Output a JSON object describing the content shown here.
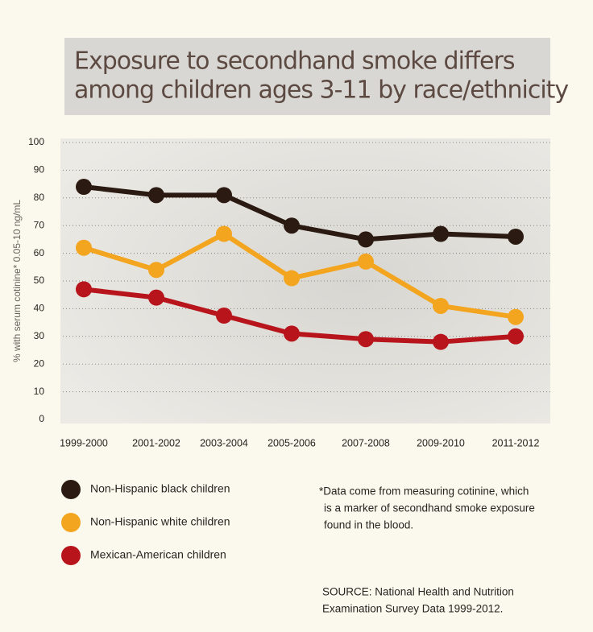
{
  "chart_data": {
    "type": "line",
    "title": [
      "Exposure to secondhand smoke differs",
      "among children ages 3-11 by race/ethnicity"
    ],
    "y_label": "% with serum cotinine* 0.05-10 ng/mL",
    "categories": [
      "1999-2000",
      "2001-2002",
      "2003-2004",
      "2005-2006",
      "2007-2008",
      "2009-2010",
      "2011-2012"
    ],
    "series": [
      {
        "name": "Non-Hispanic black children",
        "color": "#2b1a12",
        "values": [
          84,
          81,
          81,
          70,
          65,
          67,
          66
        ]
      },
      {
        "name": "Non-Hispanic white children",
        "color": "#f3a51f",
        "values": [
          62,
          54,
          67,
          51,
          57,
          41,
          37
        ]
      },
      {
        "name": "Mexican-American children",
        "color": "#b8141c",
        "values": [
          47,
          44,
          37.5,
          31,
          29,
          28,
          30
        ]
      }
    ],
    "ylim": [
      0,
      100
    ],
    "yticks": [
      0,
      10,
      20,
      30,
      40,
      50,
      60,
      70,
      80,
      90,
      100
    ],
    "grid": true,
    "footnote": [
      "*Data come from measuring cotinine, which",
      "is a marker of secondhand smoke exposure",
      "found in the blood."
    ],
    "source": [
      "SOURCE: National Health and Nutrition",
      "Examination Survey Data 1999-2012."
    ]
  }
}
